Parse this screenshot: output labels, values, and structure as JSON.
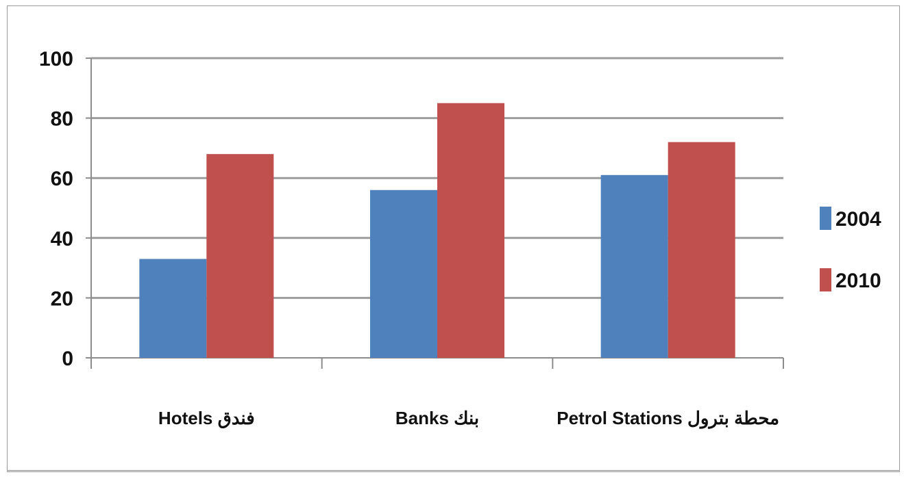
{
  "chart_data": {
    "type": "bar",
    "categories": [
      "Hotels فندق",
      "Banks بنك",
      "Petrol Stations محطة بترول"
    ],
    "series": [
      {
        "name": "2004",
        "values": [
          33,
          56,
          61
        ],
        "color": "#4f81bd"
      },
      {
        "name": "2010",
        "values": [
          68,
          85,
          72
        ],
        "color": "#c0504d"
      }
    ],
    "ylim": [
      0,
      100
    ],
    "yticks": [
      0,
      20,
      40,
      60,
      80,
      100
    ],
    "grid": true,
    "legend_position": "right",
    "title": "",
    "xlabel": "",
    "ylabel": ""
  }
}
